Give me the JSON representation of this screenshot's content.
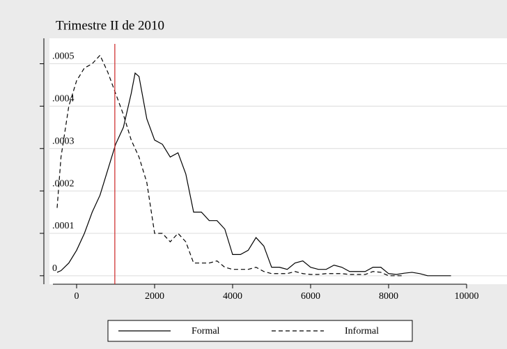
{
  "chart_data": {
    "type": "line",
    "title": "Trimestre II de 2010",
    "x": [
      -500,
      -400,
      -200,
      0,
      200,
      400,
      600,
      800,
      1000,
      1200,
      1400,
      1500,
      1600,
      1800,
      2000,
      2200,
      2400,
      2600,
      2800,
      3000,
      3200,
      3400,
      3600,
      3800,
      4000,
      4200,
      4400,
      4600,
      4800,
      5000,
      5200,
      5400,
      5600,
      5800,
      6000,
      6200,
      6400,
      6600,
      6800,
      7000,
      7200,
      7400,
      7600,
      7800,
      8000,
      8200,
      8400,
      8600,
      8800,
      9000,
      9600
    ],
    "series": [
      {
        "name": "Formal",
        "color": "#000000",
        "dash": "none",
        "values": [
          8e-06,
          1.2e-05,
          3e-05,
          6e-05,
          0.0001,
          0.00015,
          0.00019,
          0.00025,
          0.00031,
          0.00035,
          0.00043,
          0.000478,
          0.00047,
          0.00037,
          0.00032,
          0.00031,
          0.00028,
          0.00029,
          0.00024,
          0.00015,
          0.00015,
          0.00013,
          0.00013,
          0.00011,
          5e-05,
          5e-05,
          6e-05,
          9e-05,
          7e-05,
          2e-05,
          2e-05,
          1.5e-05,
          3e-05,
          3.5e-05,
          2e-05,
          1.5e-05,
          1.5e-05,
          2.5e-05,
          2e-05,
          1e-05,
          1e-05,
          1e-05,
          2e-05,
          2e-05,
          5e-06,
          3e-06,
          6e-06,
          8e-06,
          5e-06,
          0,
          0
        ]
      },
      {
        "name": "Informal",
        "color": "#000000",
        "dash": "6 4",
        "values": [
          0.00016,
          0.00028,
          0.0004,
          0.00046,
          0.00049,
          0.0005,
          0.00052,
          0.00048,
          0.00043,
          0.00038,
          0.00032,
          0.0003,
          0.00028,
          0.00022,
          0.0001,
          0.0001,
          8e-05,
          0.0001,
          8e-05,
          3e-05,
          3e-05,
          3e-05,
          3.5e-05,
          2e-05,
          1.5e-05,
          1.5e-05,
          1.5e-05,
          2e-05,
          1e-05,
          5e-06,
          5e-06,
          5e-06,
          1e-05,
          5e-06,
          3e-06,
          3e-06,
          5e-06,
          5e-06,
          5e-06,
          3e-06,
          3e-06,
          3e-06,
          1e-05,
          8e-06,
          0,
          0,
          0,
          null,
          null,
          null,
          null
        ]
      }
    ],
    "reference_line": {
      "x": 980,
      "color": "#cc2222"
    },
    "xlim": [
      -600,
      10000
    ],
    "xticks": [
      0,
      2000,
      4000,
      6000,
      8000,
      10000
    ],
    "ylim": [
      -2e-05,
      0.00056
    ],
    "yticks": [
      0,
      {
        "value": 0.0001,
        "label": ".0001"
      },
      {
        "value": 0.0002,
        "label": ".0002"
      },
      {
        "value": 0.0003,
        "label": ".0003"
      },
      {
        "value": 0.0004,
        "label": ".0004"
      },
      {
        "value": 0.0005,
        "label": ".0005"
      }
    ],
    "grid": true,
    "legend": "bottom"
  }
}
